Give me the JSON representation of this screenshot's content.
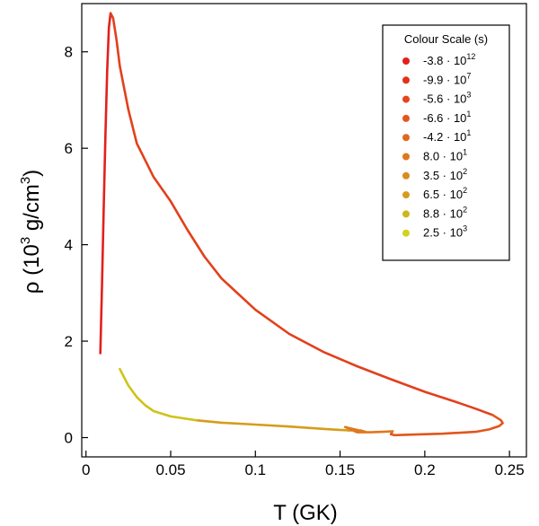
{
  "chart_data": {
    "type": "line",
    "xlabel": "T (GK)",
    "ylabel_parts": {
      "rho": "ρ",
      "open": " (10",
      "exp": "3",
      "unit": " g/cm",
      "unit_exp": "3",
      "close": ")"
    },
    "xlim": [
      -0.0025,
      0.26
    ],
    "ylim": [
      -0.4,
      9.0
    ],
    "x_ticks": [
      {
        "value": 0,
        "label": "0"
      },
      {
        "value": 0.05,
        "label": "0.05"
      },
      {
        "value": 0.1,
        "label": "0.1"
      },
      {
        "value": 0.15,
        "label": "0.15"
      },
      {
        "value": 0.2,
        "label": "0.2"
      },
      {
        "value": 0.25,
        "label": "0.25"
      }
    ],
    "y_ticks": [
      {
        "value": 0,
        "label": "0"
      },
      {
        "value": 2,
        "label": "2"
      },
      {
        "value": 4,
        "label": "4"
      },
      {
        "value": 6,
        "label": "6"
      },
      {
        "value": 8,
        "label": "8"
      }
    ],
    "legend": {
      "title": "Colour Scale (s)",
      "placement": "top-right",
      "entries": [
        {
          "mantissa": "-3.8",
          "dot": " · 10",
          "exp": "12",
          "color": "#e3201c"
        },
        {
          "mantissa": "-9.9",
          "dot": " · 10",
          "exp": "7",
          "color": "#e4301b"
        },
        {
          "mantissa": "-5.6",
          "dot": " · 10",
          "exp": "3",
          "color": "#e5461b"
        },
        {
          "mantissa": "-6.6",
          "dot": " · 10",
          "exp": "1",
          "color": "#e6561c"
        },
        {
          "mantissa": "-4.2",
          "dot": " · 10",
          "exp": "1",
          "color": "#e2661c"
        },
        {
          "mantissa": "8.0",
          "dot": " · 10",
          "exp": "1",
          "color": "#e0781c"
        },
        {
          "mantissa": "3.5",
          "dot": " · 10",
          "exp": "2",
          "color": "#dc8a1c"
        },
        {
          "mantissa": "6.5",
          "dot": " · 10",
          "exp": "2",
          "color": "#d69c1a"
        },
        {
          "mantissa": "8.8",
          "dot": " · 10",
          "exp": "2",
          "color": "#cfb51a"
        },
        {
          "mantissa": "2.5",
          "dot": " · 10",
          "exp": "3",
          "color": "#cfd31c"
        }
      ]
    },
    "series": [
      {
        "color": "#e3201c",
        "points": [
          [
            0.0085,
            1.75
          ],
          [
            0.0095,
            3.2
          ],
          [
            0.0105,
            4.8
          ],
          [
            0.0115,
            6.3
          ],
          [
            0.0125,
            7.6
          ],
          [
            0.0135,
            8.5
          ],
          [
            0.0145,
            8.8
          ]
        ]
      },
      {
        "color": "#e2401c",
        "points": [
          [
            0.0145,
            8.8
          ],
          [
            0.016,
            8.7
          ],
          [
            0.018,
            8.25
          ],
          [
            0.02,
            7.7
          ],
          [
            0.025,
            6.8
          ],
          [
            0.03,
            6.1
          ],
          [
            0.04,
            5.4
          ],
          [
            0.05,
            4.9
          ],
          [
            0.06,
            4.3
          ],
          [
            0.07,
            3.75
          ],
          [
            0.08,
            3.3
          ],
          [
            0.1,
            2.65
          ],
          [
            0.12,
            2.15
          ],
          [
            0.14,
            1.78
          ],
          [
            0.16,
            1.48
          ],
          [
            0.18,
            1.21
          ],
          [
            0.2,
            0.95
          ],
          [
            0.22,
            0.72
          ],
          [
            0.23,
            0.6
          ],
          [
            0.24,
            0.47
          ]
        ]
      },
      {
        "color": "#e2561c",
        "points": [
          [
            0.24,
            0.47
          ],
          [
            0.245,
            0.36
          ],
          [
            0.246,
            0.3
          ],
          [
            0.244,
            0.24
          ],
          [
            0.238,
            0.17
          ],
          [
            0.23,
            0.12
          ],
          [
            0.21,
            0.08
          ],
          [
            0.19,
            0.06
          ],
          [
            0.182,
            0.05
          ],
          [
            0.18,
            0.07
          ],
          [
            0.181,
            0.13
          ]
        ]
      },
      {
        "color": "#e0781c",
        "points": [
          [
            0.181,
            0.13
          ],
          [
            0.175,
            0.12
          ],
          [
            0.168,
            0.11
          ],
          [
            0.16,
            0.11
          ],
          [
            0.153,
            0.22
          ],
          [
            0.155,
            0.2
          ],
          [
            0.165,
            0.12
          ],
          [
            0.162,
            0.15
          ],
          [
            0.155,
            0.15
          ]
        ]
      },
      {
        "color": "#d69c1a",
        "points": [
          [
            0.155,
            0.15
          ],
          [
            0.14,
            0.18
          ],
          [
            0.12,
            0.23
          ],
          [
            0.1,
            0.27
          ],
          [
            0.08,
            0.31
          ],
          [
            0.065,
            0.36
          ]
        ]
      },
      {
        "color": "#cfc31a",
        "points": [
          [
            0.065,
            0.36
          ],
          [
            0.05,
            0.44
          ],
          [
            0.04,
            0.55
          ],
          [
            0.035,
            0.67
          ],
          [
            0.03,
            0.84
          ],
          [
            0.025,
            1.08
          ],
          [
            0.02,
            1.42
          ]
        ]
      }
    ]
  }
}
